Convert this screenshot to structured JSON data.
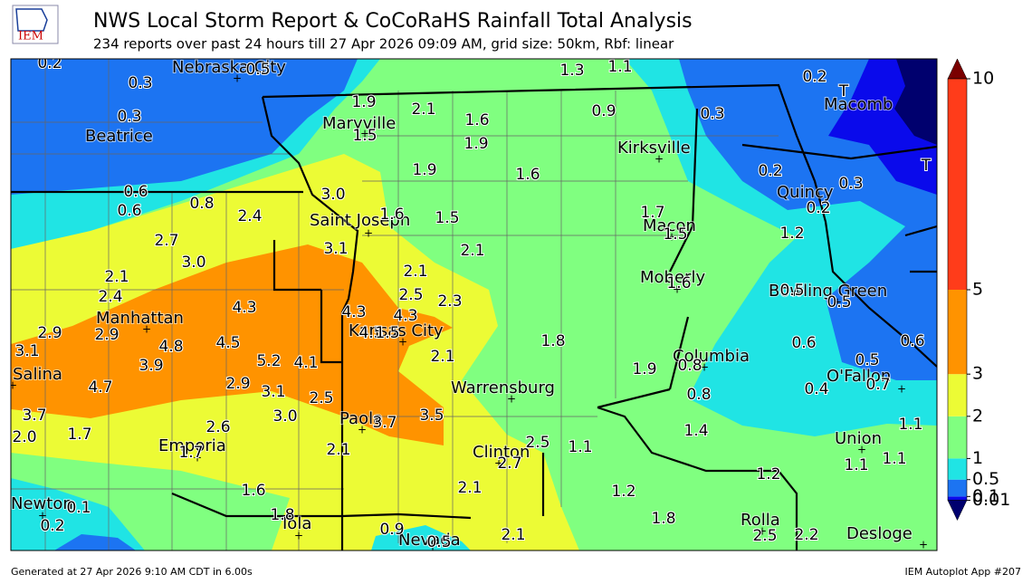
{
  "header": {
    "logo": "IEM",
    "title": "NWS Local Storm Report & CoCoRaHS Rainfall Total Analysis",
    "subtitle": "234 reports over past 24 hours till 27 Apr 2026 09:09 AM, grid size: 50km, Rbf: linear"
  },
  "footer": {
    "left": "Generated at 27 Apr 2026 9:10 AM CDT in 6.00s",
    "right": "IEM Autoplot App #207"
  },
  "colorbar": {
    "levels": [
      0.01,
      0.1,
      0.5,
      1,
      2,
      3,
      5,
      10
    ],
    "colors": [
      "#00006e",
      "#0a0aeb",
      "#1c74f2",
      "#20e4e4",
      "#80ff80",
      "#ecfb35",
      "#ff9300",
      "#ff3c1a",
      "#7a0000"
    ]
  },
  "cities": [
    "Nebraska City",
    "Beatrice",
    "Maryville",
    "Kirksville",
    "Saint Joseph",
    "Macon",
    "Quincy",
    "Macomb",
    "Moberly",
    "Bowling Green",
    "Manhattan",
    "Kansas City",
    "Salina",
    "Columbia",
    "O'Fallon",
    "Warrensburg",
    "Paola",
    "Emporia",
    "Union",
    "Clinton",
    "Rolla",
    "Newton",
    "Iola",
    "Nevada",
    "Desloge"
  ],
  "reports": [
    "0.2",
    "0.5",
    "1.3",
    "1.1",
    "0.2",
    "T",
    "0.3",
    "1.9",
    "2.1",
    "0.9",
    "0.3",
    "0.3",
    "1.6",
    "1.5",
    "1.9",
    "0.2",
    "T",
    "0.3",
    "1.9",
    "1.6",
    "3.0",
    "0.6",
    "0.8",
    "0.2",
    "0.6",
    "2.4",
    "1.6",
    "1.5",
    "1.7",
    "1.5",
    "1.2",
    "2.7",
    "3.1",
    "2.1",
    "3.0",
    "2.1",
    "2.1",
    "1.6",
    "0.5",
    "2.4",
    "2.5",
    "2.3",
    "0.5",
    "4.3",
    "4.3",
    "4.3",
    "2.9",
    "2.9",
    "4.5",
    "1.5",
    "1.8",
    "0.6",
    "0.6",
    "3.1",
    "4.8",
    "4.5",
    "2.1",
    "5.2",
    "4.1",
    "3.9",
    "0.8",
    "1.9",
    "0.5",
    "4.7",
    "2.9",
    "3.1",
    "0.4",
    "0.7",
    "2.5",
    "0.8",
    "3.7",
    "3.0",
    "3.5",
    "3.7",
    "2.6",
    "1.4",
    "1.1",
    "2.0",
    "1.7",
    "2.1",
    "2.5",
    "1.1",
    "1.7",
    "2.7",
    "1.1",
    "1.1",
    "1.2",
    "2.1",
    "1.6",
    "1.2",
    "0.1",
    "1.8",
    "1.8",
    "0.2",
    "0.9",
    "2.1",
    "2.5",
    "2.2",
    "0.5"
  ]
}
